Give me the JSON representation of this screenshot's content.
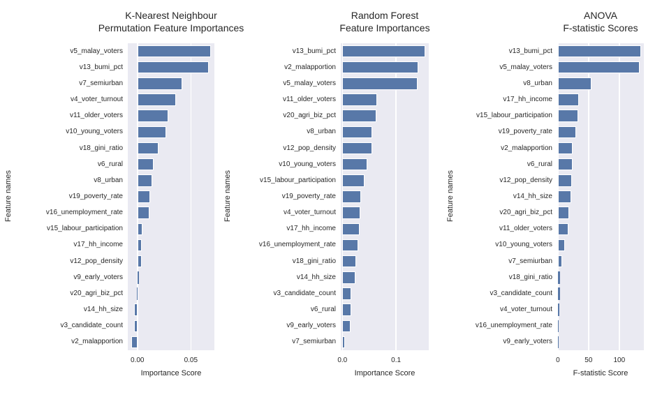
{
  "style": {
    "figure_background": "#ffffff",
    "plot_background": "#eaeaf2",
    "gridline_color": "#ffffff",
    "bar_color": "#5878a8",
    "bar_edge_color": "#ffffff",
    "text_color": "#262626"
  },
  "chart_data": [
    {
      "type": "bar",
      "orientation": "horizontal",
      "title_lines": [
        "K-Nearest Neighbour",
        "Permutation Feature Importances"
      ],
      "xlabel": "Importance Score",
      "ylabel": "Feature names",
      "grid": true,
      "legend": false,
      "xlim": [
        -0.009,
        0.072
      ],
      "xticks": [
        {
          "value": 0,
          "label": "0.00"
        },
        {
          "value": 0.05,
          "label": "0.05"
        }
      ],
      "categories": [
        "v5_malay_voters",
        "v13_bumi_pct",
        "v7_semiurban",
        "v4_voter_turnout",
        "v11_older_voters",
        "v10_young_voters",
        "v18_gini_ratio",
        "v6_rural",
        "v8_urban",
        "v19_poverty_rate",
        "v16_unemployment_rate",
        "v15_labour_participation",
        "v17_hh_income",
        "v12_pop_density",
        "v9_early_voters",
        "v20_agri_biz_pct",
        "v14_hh_size",
        "v3_candidate_count",
        "v2_malapportion"
      ],
      "values": [
        0.069,
        0.067,
        0.042,
        0.036,
        0.029,
        0.027,
        0.02,
        0.015,
        0.014,
        0.012,
        0.011,
        0.005,
        0.004,
        0.004,
        0.0015,
        -0.0005,
        -0.003,
        -0.003,
        -0.006
      ]
    },
    {
      "type": "bar",
      "orientation": "horizontal",
      "title_lines": [
        "Random Forest",
        "Feature Importances"
      ],
      "xlabel": "Importance Score",
      "ylabel": "Feature names",
      "grid": true,
      "legend": false,
      "xlim": [
        -0.003,
        0.161
      ],
      "xticks": [
        {
          "value": 0,
          "label": "0.0"
        },
        {
          "value": 0.1,
          "label": "0.1"
        }
      ],
      "categories": [
        "v13_bumi_pct",
        "v2_malapportion",
        "v5_malay_voters",
        "v11_older_voters",
        "v20_agri_biz_pct",
        "v8_urban",
        "v12_pop_density",
        "v10_young_voters",
        "v15_labour_participation",
        "v19_poverty_rate",
        "v4_voter_turnout",
        "v17_hh_income",
        "v16_unemployment_rate",
        "v18_gini_ratio",
        "v14_hh_size",
        "v3_candidate_count",
        "v6_rural",
        "v9_early_voters",
        "v7_semiurban"
      ],
      "values": [
        0.155,
        0.142,
        0.14,
        0.065,
        0.064,
        0.056,
        0.055,
        0.047,
        0.041,
        0.035,
        0.034,
        0.032,
        0.03,
        0.026,
        0.024,
        0.016,
        0.016,
        0.015,
        0.005
      ]
    },
    {
      "type": "bar",
      "orientation": "horizontal",
      "title_lines": [
        "ANOVA",
        "F-statistic Scores"
      ],
      "xlabel": "F-statistic Score",
      "ylabel": "Feature names",
      "grid": true,
      "legend": false,
      "xlim": [
        -1,
        140
      ],
      "xticks": [
        {
          "value": 0,
          "label": "0"
        },
        {
          "value": 50,
          "label": "50"
        },
        {
          "value": 100,
          "label": "100"
        }
      ],
      "categories": [
        "v13_bumi_pct",
        "v5_malay_voters",
        "v8_urban",
        "v17_hh_income",
        "v15_labour_participation",
        "v19_poverty_rate",
        "v2_malapportion",
        "v6_rural",
        "v12_pop_density",
        "v14_hh_size",
        "v20_agri_biz_pct",
        "v11_older_voters",
        "v10_young_voters",
        "v7_semiurban",
        "v18_gini_ratio",
        "v3_candidate_count",
        "v4_voter_turnout",
        "v16_unemployment_rate",
        "v9_early_voters"
      ],
      "values": [
        135,
        133,
        55,
        34,
        33,
        30,
        24,
        24,
        23,
        22,
        18,
        17,
        12,
        7,
        3,
        3,
        2,
        0.5,
        0.2
      ]
    }
  ]
}
